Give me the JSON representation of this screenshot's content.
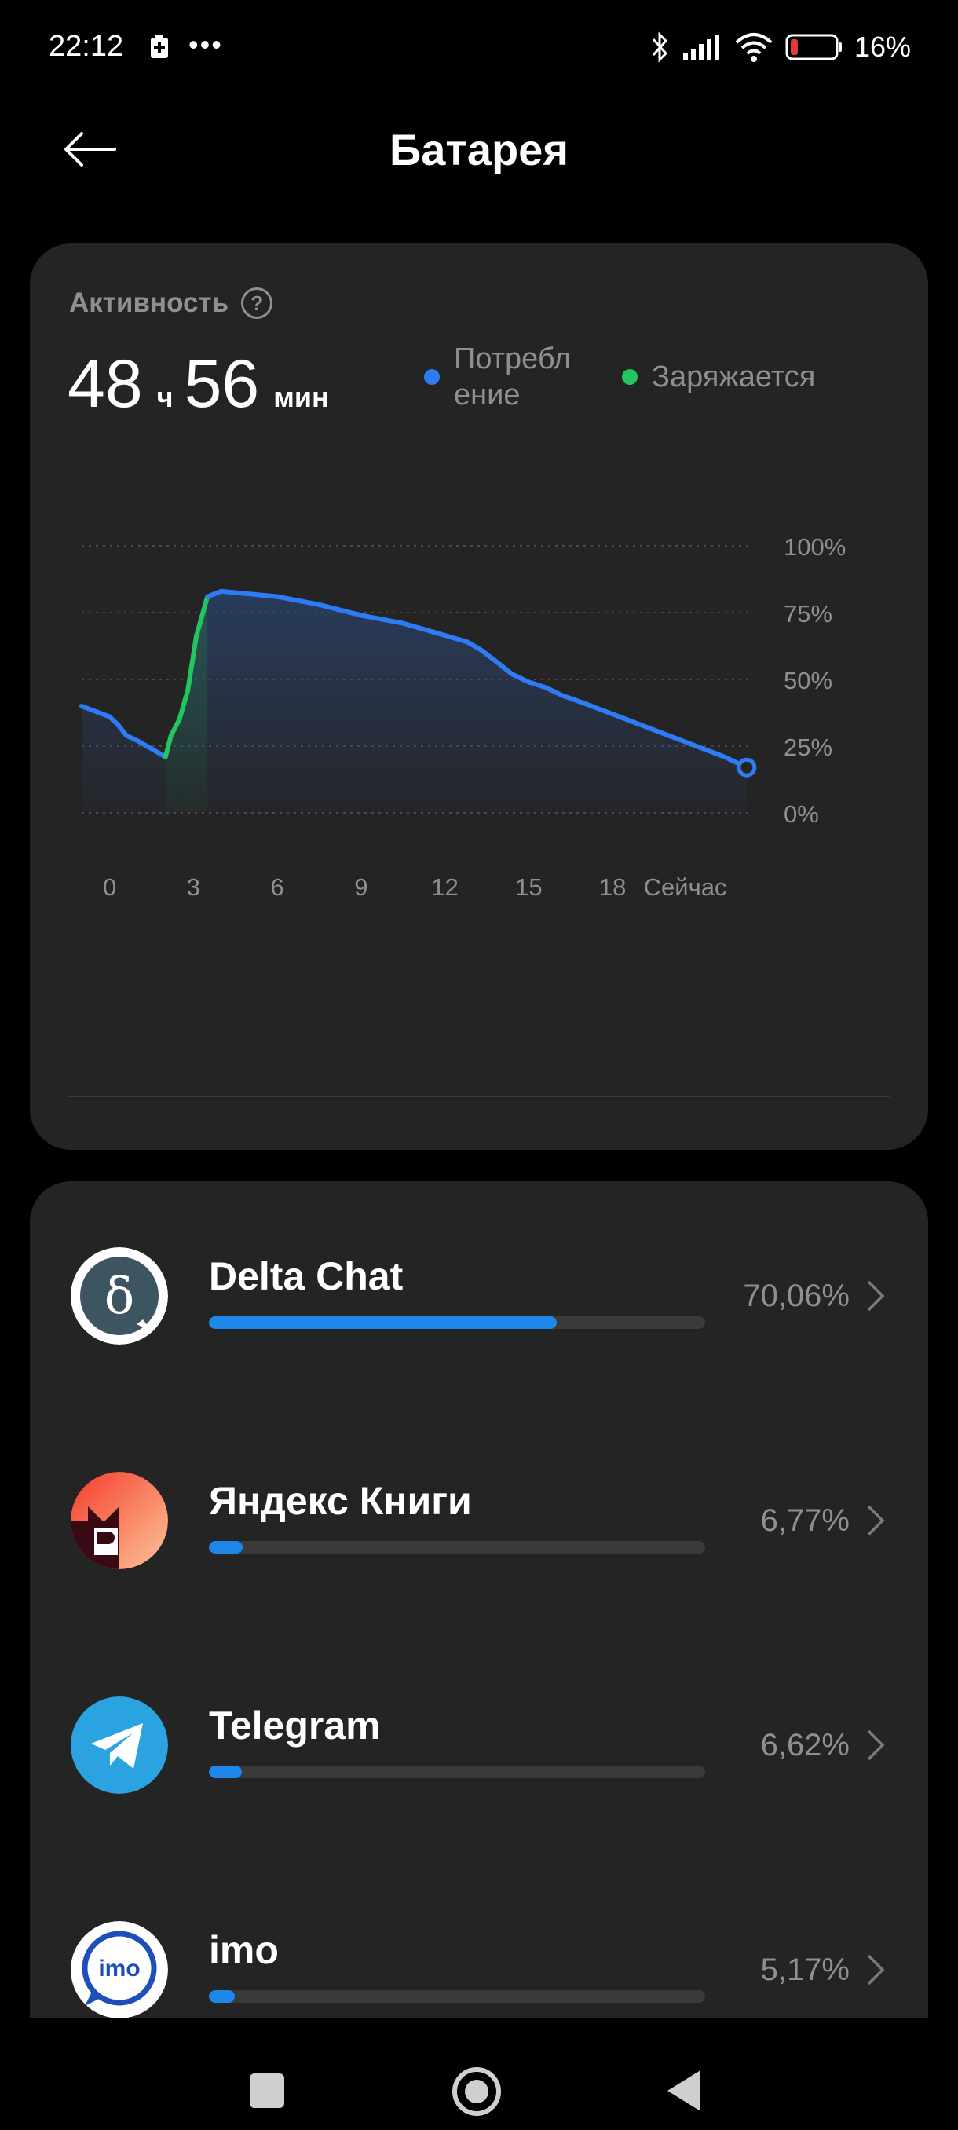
{
  "status_bar": {
    "time": "22:12",
    "dots": "•••",
    "battery_text": "16%",
    "battery_level": 0.16
  },
  "header": {
    "title": "Батарея"
  },
  "activity": {
    "label": "Активность",
    "help": "?",
    "hours": "48",
    "hours_unit": "ч",
    "minutes": "56",
    "minutes_unit": "мин",
    "legend": [
      {
        "label": "Потребл ение",
        "color": "#2d7cf6"
      },
      {
        "label": "Заряжается",
        "color": "#22c55e"
      }
    ]
  },
  "chart_data": {
    "type": "line",
    "xlabel": "",
    "ylabel": "",
    "x_tick_labels": [
      "0",
      "3",
      "6",
      "9",
      "12",
      "15",
      "18",
      "Сейчас"
    ],
    "y_tick_labels": [
      "100%",
      "75%",
      "50%",
      "25%",
      "0%"
    ],
    "ylim": [
      0,
      100
    ],
    "xlim": [
      -1,
      23
    ],
    "grid": true,
    "series": [
      {
        "name": "Потребл ение",
        "color": "#2d7cf6",
        "points": [
          [
            -1,
            40
          ],
          [
            0,
            36
          ],
          [
            0.3,
            33
          ],
          [
            0.6,
            29
          ],
          [
            1,
            27
          ],
          [
            2,
            21
          ]
        ]
      },
      {
        "name": "Заряжается",
        "color": "#22c55e",
        "points": [
          [
            2,
            21
          ],
          [
            2.2,
            29
          ],
          [
            2.5,
            35
          ],
          [
            2.8,
            46
          ],
          [
            3.1,
            66
          ],
          [
            3.5,
            81
          ]
        ]
      },
      {
        "name": "Потребл ение",
        "color": "#2d7cf6",
        "points": [
          [
            3.5,
            81
          ],
          [
            4,
            83
          ],
          [
            5,
            82
          ],
          [
            6,
            81
          ],
          [
            7.5,
            78
          ],
          [
            9,
            74
          ],
          [
            10.5,
            71
          ],
          [
            11.5,
            68
          ],
          [
            12.8,
            64
          ],
          [
            13.3,
            61
          ],
          [
            13.8,
            57
          ],
          [
            14.4,
            52
          ],
          [
            15,
            49
          ],
          [
            15.6,
            47
          ],
          [
            16.2,
            44
          ],
          [
            17,
            41
          ],
          [
            18,
            37
          ],
          [
            19,
            33
          ],
          [
            20,
            29
          ],
          [
            21,
            25
          ],
          [
            22,
            21
          ],
          [
            22.8,
            17
          ]
        ]
      }
    ]
  },
  "apps": [
    {
      "name": "Delta Chat",
      "percent": "70,06%",
      "share": 0.7006,
      "icon": "delta-chat-icon"
    },
    {
      "name": "Яндекс Книги",
      "percent": "6,77%",
      "share": 0.0677,
      "icon": "yandex-books-icon"
    },
    {
      "name": "Telegram",
      "percent": "6,62%",
      "share": 0.0662,
      "icon": "telegram-icon"
    },
    {
      "name": "imo",
      "percent": "5,17%",
      "share": 0.0517,
      "icon": "imo-icon"
    }
  ]
}
